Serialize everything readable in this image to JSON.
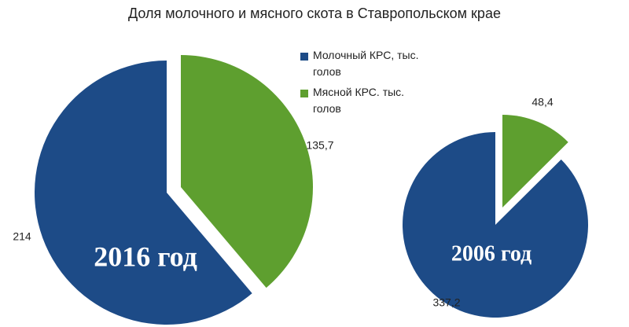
{
  "title": "Доля молочного и мясного скота в Ставропольском крае",
  "chart_data": [
    {
      "type": "pie",
      "label": "2016 год",
      "categories": [
        "Молочный КРС, тыс. голов",
        "Мясной КРС. тыс. голов"
      ],
      "values": [
        214,
        135.7
      ],
      "value_labels": [
        "214",
        "135,7"
      ],
      "colors": [
        "#1d4b87",
        "#5e9f2f"
      ]
    },
    {
      "type": "pie",
      "label": "2006 год",
      "values": [
        337.2,
        48.4
      ],
      "value_labels": [
        "337,2",
        "48,4"
      ],
      "colors": [
        "#1d4b87",
        "#5e9f2f"
      ]
    }
  ]
}
